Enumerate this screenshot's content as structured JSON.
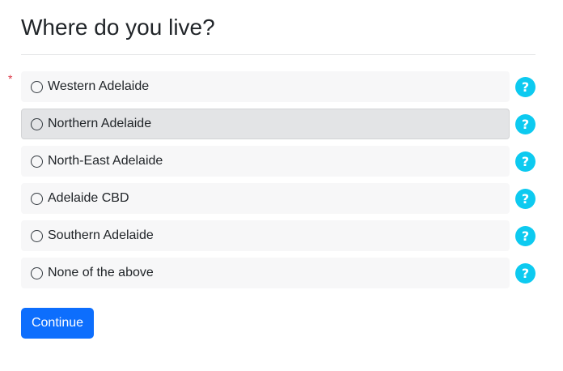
{
  "question": {
    "title": "Where do you live?",
    "required_marker": "*"
  },
  "options": [
    {
      "label": "Western Adelaide",
      "help_icon": "?"
    },
    {
      "label": "Northern Adelaide",
      "help_icon": "?"
    },
    {
      "label": "North-East Adelaide",
      "help_icon": "?"
    },
    {
      "label": "Adelaide CBD",
      "help_icon": "?"
    },
    {
      "label": "Southern Adelaide",
      "help_icon": "?"
    },
    {
      "label": "None of the above",
      "help_icon": "?"
    }
  ],
  "actions": {
    "continue_label": "Continue"
  },
  "colors": {
    "primary": "#0d6efd",
    "info": "#0dcaf0",
    "required": "#dc3545",
    "option_bg": "#f7f7f8",
    "option_hover_bg": "#e3e4e6"
  },
  "icons": {
    "help": "question-circle-icon",
    "radio": "radio-unchecked-icon"
  }
}
